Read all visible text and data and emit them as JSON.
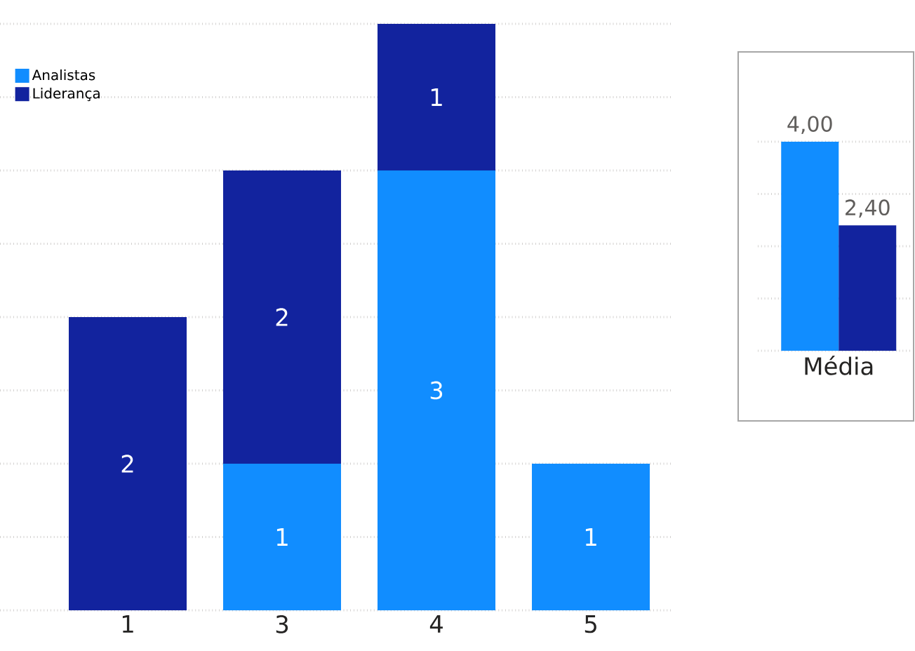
{
  "chart_data": [
    {
      "type": "bar",
      "stacked": true,
      "categories": [
        "1",
        "3",
        "4",
        "5"
      ],
      "grid": "y",
      "tick_labels": "x",
      "legend": "top left",
      "series": [
        {
          "name": "Analistas",
          "color": "#118dff",
          "values": [
            0,
            1,
            3,
            1
          ],
          "value_labels": [
            null,
            "1",
            "3",
            "1"
          ]
        },
        {
          "name": "Liderança",
          "color": "#12239e",
          "values": [
            2,
            2,
            1,
            0
          ],
          "value_labels": [
            "2",
            "2",
            "1",
            null
          ]
        }
      ]
    },
    {
      "type": "bar",
      "categories": [
        "Média"
      ],
      "grid": "y",
      "tick_labels": "x",
      "series": [
        {
          "color": "#118dff",
          "values": [
            4.0
          ],
          "value_labels": [
            "4,00"
          ]
        },
        {
          "color": "#12239e",
          "values": [
            2.4
          ],
          "value_labels": [
            "2,40"
          ]
        }
      ]
    }
  ]
}
